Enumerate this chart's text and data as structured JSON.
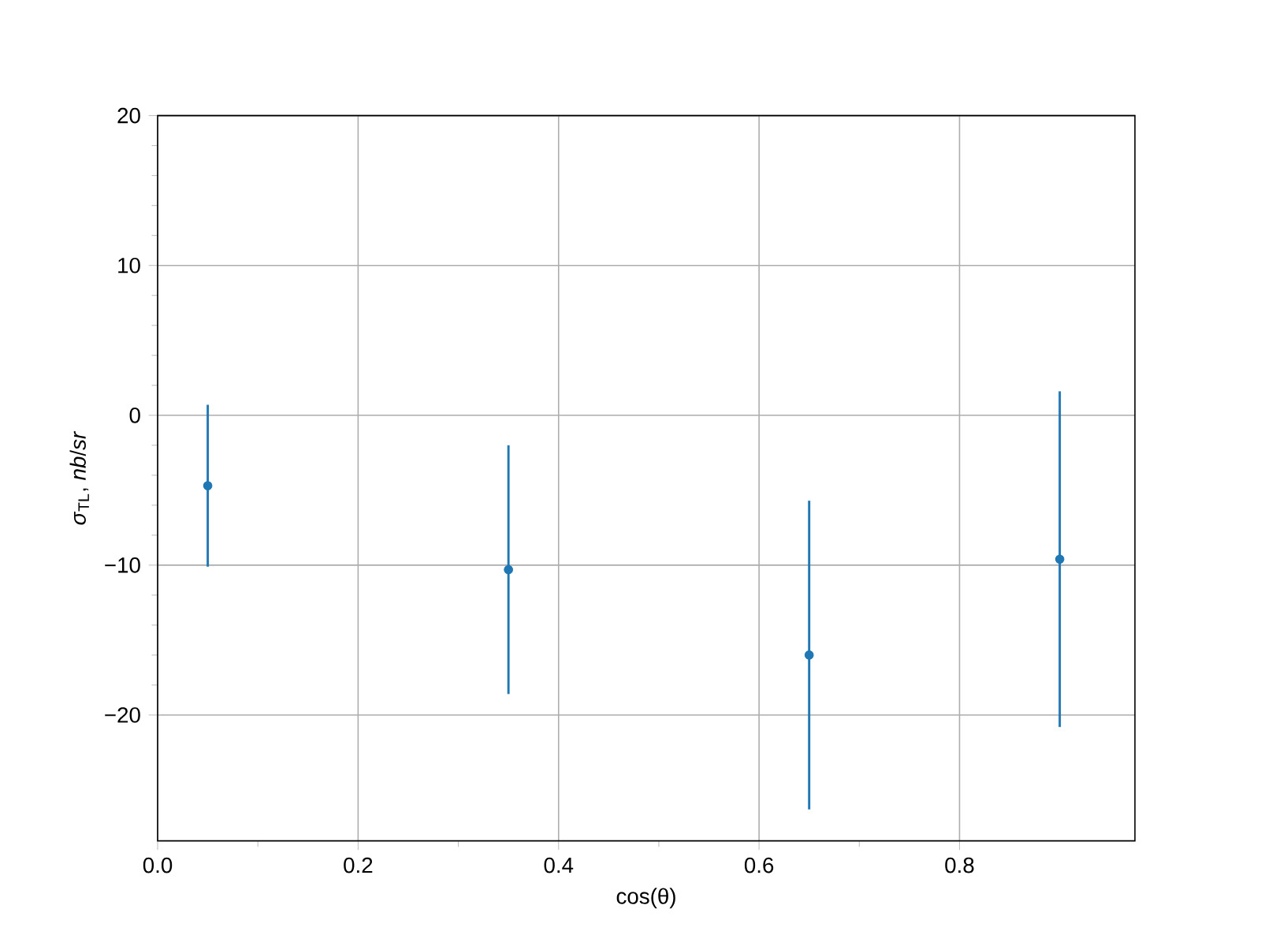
{
  "chart_data": {
    "type": "scatter",
    "xlabel": "cos(θ)",
    "ylabel": "*σ*$_{TL}$, *nb*/*sr*",
    "x": [
      0.05,
      0.35,
      0.65,
      0.9
    ],
    "series": [
      {
        "color": "#1f77b4",
        "values": [
          -4.7,
          -10.3,
          -16.0,
          -9.6
        ],
        "errors": [
          5.4,
          8.3,
          10.3,
          11.2
        ]
      }
    ],
    "marker": "circle",
    "grid": true,
    "xlim": [
      0,
      0.975
    ],
    "ylim": [
      -28.4,
      20
    ],
    "xticks": [
      {
        "value": 0,
        "label": "0.0"
      },
      {
        "value": 0.2,
        "label": "0.2"
      },
      {
        "value": 0.4,
        "label": "0.4"
      },
      {
        "value": 0.6,
        "label": "0.6"
      },
      {
        "value": 0.8,
        "label": "0.8"
      }
    ],
    "yticks": [
      {
        "value": -20,
        "label": "−20"
      },
      {
        "value": -10,
        "label": "−10"
      },
      0,
      10,
      20
    ]
  }
}
